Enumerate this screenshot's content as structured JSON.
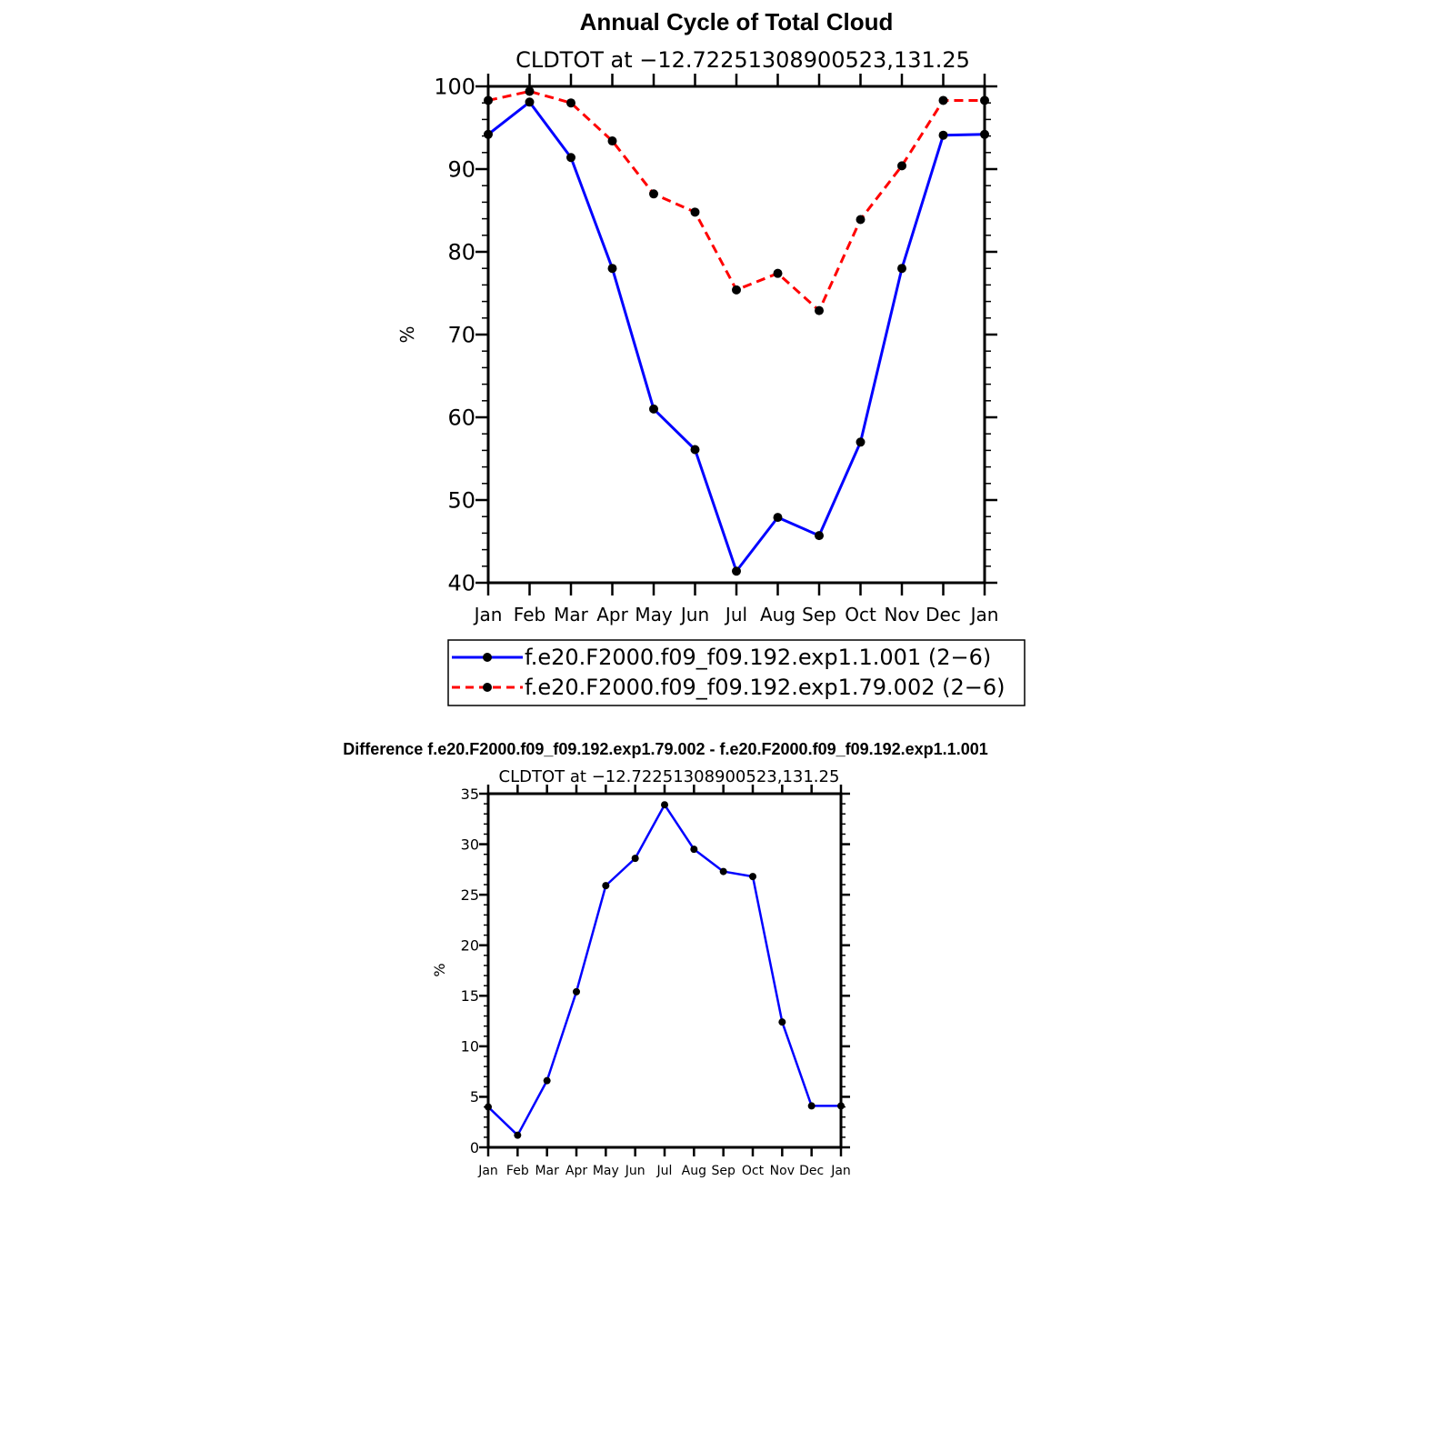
{
  "chart_data": [
    {
      "type": "line",
      "title": "Annual Cycle of Total Cloud",
      "subtitle": "CLDTOT at −12.72251308900523,131.25",
      "ylabel": "%",
      "ylim": [
        40,
        100
      ],
      "yticks": [
        "40",
        "50",
        "60",
        "70",
        "80",
        "90",
        "100"
      ],
      "categories": [
        "Jan",
        "Feb",
        "Mar",
        "Apr",
        "May",
        "Jun",
        "Jul",
        "Aug",
        "Sep",
        "Oct",
        "Nov",
        "Dec",
        "Jan"
      ],
      "grid": false,
      "legend_position": "bottom",
      "series": [
        {
          "name": "f.e20.F2000.f09_f09.192.exp1.1.001 (2−6)",
          "color": "#0000ff",
          "dash": "solid",
          "values": [
            94.2,
            98.1,
            91.4,
            78.0,
            61.0,
            56.1,
            41.4,
            47.9,
            45.7,
            57.0,
            78.0,
            94.1,
            94.2
          ]
        },
        {
          "name": "f.e20.F2000.f09_f09.192.exp1.79.002 (2−6)",
          "color": "#ff0000",
          "dash": "dashed",
          "values": [
            98.3,
            99.4,
            98.0,
            93.4,
            87.0,
            84.8,
            75.4,
            77.4,
            72.9,
            83.9,
            90.4,
            98.3,
            98.3
          ]
        }
      ]
    },
    {
      "type": "line",
      "title": "Difference f.e20.F2000.f09_f09.192.exp1.79.002 - f.e20.F2000.f09_f09.192.exp1.1.001",
      "subtitle": "CLDTOT at −12.72251308900523,131.25",
      "ylabel": "%",
      "ylim": [
        0,
        35
      ],
      "yticks": [
        "0",
        "5",
        "10",
        "15",
        "20",
        "25",
        "30",
        "35"
      ],
      "categories": [
        "Jan",
        "Feb",
        "Mar",
        "Apr",
        "May",
        "Jun",
        "Jul",
        "Aug",
        "Sep",
        "Oct",
        "Nov",
        "Dec",
        "Jan"
      ],
      "grid": false,
      "series": [
        {
          "color": "#0000ff",
          "dash": "solid",
          "values": [
            4.0,
            1.2,
            6.6,
            15.4,
            25.9,
            28.6,
            33.9,
            29.5,
            27.3,
            26.8,
            12.4,
            4.1,
            4.1
          ]
        }
      ]
    }
  ]
}
